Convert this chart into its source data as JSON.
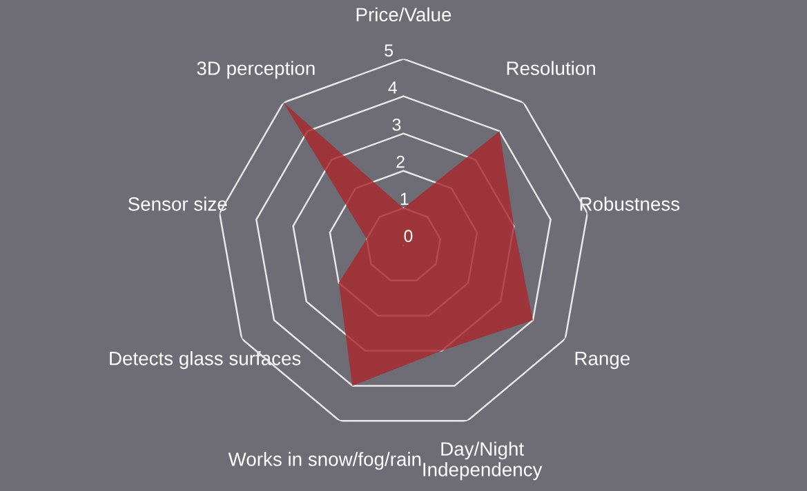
{
  "chart_data": {
    "type": "radar",
    "categories": [
      "Price/Value",
      "Resolution",
      "Robustness",
      "Range",
      "Day/Night\nIndependency",
      "Works in snow/fog/rain",
      "Detects glass surfaces",
      "Sensor size",
      "3D perception"
    ],
    "series": [
      {
        "color": "#a8282e",
        "values": [
          1,
          4,
          3,
          4,
          3,
          4,
          2,
          1,
          5
        ]
      }
    ],
    "ylim": [
      0,
      5
    ],
    "yticks": [
      0,
      1,
      2,
      3,
      4,
      5
    ],
    "grid": true,
    "legend": false
  }
}
